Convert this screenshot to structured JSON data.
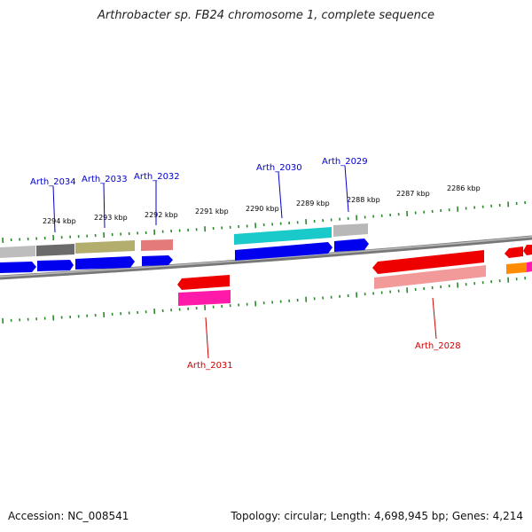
{
  "title": "Arthrobacter sp. FB24 chromosome 1, complete sequence",
  "footer": {
    "accession": "Accession: NC_008541",
    "summary": "Topology: circular; Length: 4,698,945 bp; Genes: 4,214"
  },
  "kbp_labels": [
    "2294 kbp",
    "2293 kbp",
    "2292 kbp",
    "2291 kbp",
    "2290 kbp",
    "2289 kbp",
    "2288 kbp",
    "2287 kbp",
    "2286 kbp"
  ],
  "gene_labels": {
    "forward": [
      "Arth_2034",
      "Arth_2033",
      "Arth_2032",
      "Arth_2030",
      "Arth_2029"
    ],
    "reverse": [
      "Arth_2031",
      "Arth_2028"
    ]
  },
  "colors": {
    "forward_label": "#0000cc",
    "reverse_label": "#cc0000",
    "tick": "#2a8a2a",
    "backbone": "#888888"
  }
}
